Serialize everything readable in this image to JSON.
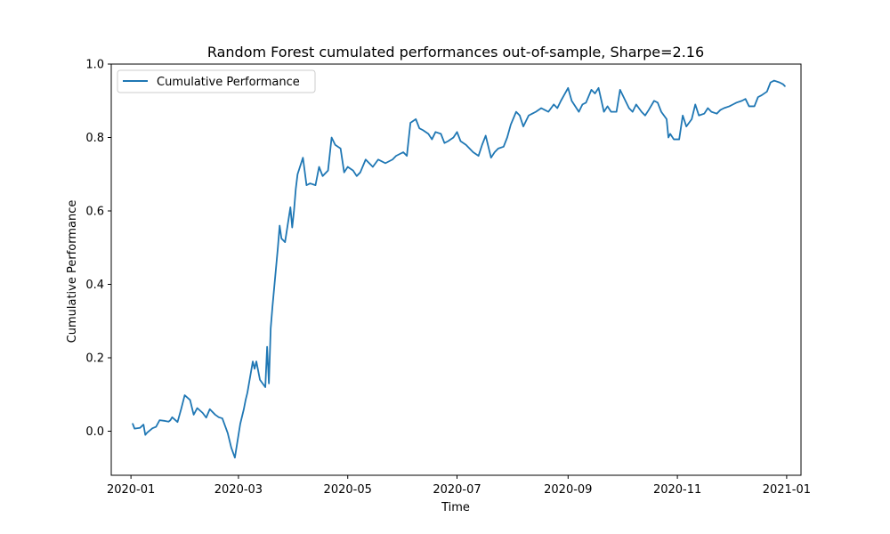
{
  "chart_data": {
    "type": "line",
    "title": "Random Forest cumulated performances out-of-sample, Sharpe=2.16",
    "xlabel": "Time",
    "ylabel": "Cumulative Performance",
    "x_type": "date",
    "xlim": [
      "2019-12-21",
      "2021-01-09"
    ],
    "ylim": [
      -0.12,
      1.0
    ],
    "x_ticks": [
      "2020-01-01",
      "2020-03-01",
      "2020-05-01",
      "2020-07-01",
      "2020-09-01",
      "2020-11-01",
      "2021-01-01"
    ],
    "x_tick_labels": [
      "2020-01",
      "2020-03",
      "2020-05",
      "2020-07",
      "2020-09",
      "2020-11",
      "2021-01"
    ],
    "y_ticks": [
      0.0,
      0.2,
      0.4,
      0.6,
      0.8,
      1.0
    ],
    "y_tick_labels": [
      "0.0",
      "0.2",
      "0.4",
      "0.6",
      "0.8",
      "1.0"
    ],
    "grid": false,
    "legend_position": "upper-left",
    "series": [
      {
        "name": "Cumulative Performance",
        "color": "#1f77b4",
        "x": [
          "2020-01-02",
          "2020-01-03",
          "2020-01-06",
          "2020-01-08",
          "2020-01-09",
          "2020-01-10",
          "2020-01-13",
          "2020-01-15",
          "2020-01-17",
          "2020-01-20",
          "2020-01-22",
          "2020-01-23",
          "2020-01-24",
          "2020-01-27",
          "2020-01-29",
          "2020-01-31",
          "2020-02-03",
          "2020-02-05",
          "2020-02-07",
          "2020-02-10",
          "2020-02-12",
          "2020-02-14",
          "2020-02-17",
          "2020-02-19",
          "2020-02-21",
          "2020-02-24",
          "2020-02-26",
          "2020-02-28",
          "2020-03-02",
          "2020-03-04",
          "2020-03-05",
          "2020-03-06",
          "2020-03-09",
          "2020-03-10",
          "2020-03-11",
          "2020-03-12",
          "2020-03-13",
          "2020-03-16",
          "2020-03-17",
          "2020-03-18",
          "2020-03-19",
          "2020-03-20",
          "2020-03-23",
          "2020-03-24",
          "2020-03-25",
          "2020-03-26",
          "2020-03-27",
          "2020-03-30",
          "2020-03-31",
          "2020-04-01",
          "2020-04-02",
          "2020-04-03",
          "2020-04-06",
          "2020-04-08",
          "2020-04-10",
          "2020-04-13",
          "2020-04-15",
          "2020-04-17",
          "2020-04-20",
          "2020-04-22",
          "2020-04-24",
          "2020-04-27",
          "2020-04-29",
          "2020-05-01",
          "2020-05-04",
          "2020-05-06",
          "2020-05-08",
          "2020-05-11",
          "2020-05-13",
          "2020-05-15",
          "2020-05-18",
          "2020-05-20",
          "2020-05-22",
          "2020-05-26",
          "2020-05-28",
          "2020-06-01",
          "2020-06-03",
          "2020-06-05",
          "2020-06-08",
          "2020-06-10",
          "2020-06-12",
          "2020-06-15",
          "2020-06-17",
          "2020-06-19",
          "2020-06-22",
          "2020-06-24",
          "2020-06-26",
          "2020-06-29",
          "2020-07-01",
          "2020-07-03",
          "2020-07-06",
          "2020-07-08",
          "2020-07-10",
          "2020-07-13",
          "2020-07-15",
          "2020-07-17",
          "2020-07-20",
          "2020-07-22",
          "2020-07-24",
          "2020-07-27",
          "2020-07-29",
          "2020-07-31",
          "2020-08-03",
          "2020-08-05",
          "2020-08-07",
          "2020-08-10",
          "2020-08-12",
          "2020-08-14",
          "2020-08-17",
          "2020-08-19",
          "2020-08-21",
          "2020-08-24",
          "2020-08-26",
          "2020-08-28",
          "2020-09-01",
          "2020-09-03",
          "2020-09-07",
          "2020-09-09",
          "2020-09-11",
          "2020-09-14",
          "2020-09-16",
          "2020-09-18",
          "2020-09-21",
          "2020-09-23",
          "2020-09-25",
          "2020-09-28",
          "2020-09-30",
          "2020-10-02",
          "2020-10-05",
          "2020-10-07",
          "2020-10-09",
          "2020-10-12",
          "2020-10-14",
          "2020-10-16",
          "2020-10-19",
          "2020-10-21",
          "2020-10-23",
          "2020-10-26",
          "2020-10-27",
          "2020-10-28",
          "2020-10-30",
          "2020-11-02",
          "2020-11-04",
          "2020-11-06",
          "2020-11-09",
          "2020-11-11",
          "2020-11-13",
          "2020-11-16",
          "2020-11-18",
          "2020-11-20",
          "2020-11-23",
          "2020-11-25",
          "2020-11-27",
          "2020-11-30",
          "2020-12-02",
          "2020-12-04",
          "2020-12-07",
          "2020-12-09",
          "2020-12-11",
          "2020-12-14",
          "2020-12-16",
          "2020-12-18",
          "2020-12-21",
          "2020-12-23",
          "2020-12-25",
          "2020-12-28",
          "2020-12-30",
          "2020-12-31"
        ],
        "y": [
          0.02,
          0.007,
          0.009,
          0.018,
          -0.01,
          -0.004,
          0.008,
          0.012,
          0.03,
          0.028,
          0.026,
          0.03,
          0.038,
          0.025,
          0.06,
          0.098,
          0.085,
          0.045,
          0.063,
          0.05,
          0.037,
          0.06,
          0.045,
          0.038,
          0.035,
          -0.005,
          -0.045,
          -0.072,
          0.02,
          0.06,
          0.085,
          0.105,
          0.19,
          0.17,
          0.19,
          0.165,
          0.14,
          0.12,
          0.23,
          0.13,
          0.28,
          0.34,
          0.5,
          0.56,
          0.525,
          0.52,
          0.515,
          0.61,
          0.555,
          0.6,
          0.66,
          0.7,
          0.745,
          0.67,
          0.675,
          0.67,
          0.72,
          0.695,
          0.71,
          0.8,
          0.78,
          0.77,
          0.705,
          0.72,
          0.71,
          0.695,
          0.705,
          0.74,
          0.73,
          0.72,
          0.74,
          0.735,
          0.73,
          0.74,
          0.75,
          0.76,
          0.75,
          0.84,
          0.85,
          0.825,
          0.82,
          0.81,
          0.795,
          0.815,
          0.81,
          0.785,
          0.79,
          0.8,
          0.815,
          0.79,
          0.78,
          0.77,
          0.76,
          0.75,
          0.78,
          0.805,
          0.745,
          0.76,
          0.77,
          0.775,
          0.8,
          0.835,
          0.87,
          0.86,
          0.83,
          0.86,
          0.865,
          0.87,
          0.88,
          0.875,
          0.87,
          0.89,
          0.88,
          0.9,
          0.935,
          0.9,
          0.87,
          0.89,
          0.895,
          0.93,
          0.92,
          0.935,
          0.87,
          0.885,
          0.87,
          0.87,
          0.93,
          0.91,
          0.88,
          0.87,
          0.89,
          0.87,
          0.86,
          0.875,
          0.9,
          0.895,
          0.87,
          0.85,
          0.8,
          0.81,
          0.795,
          0.795,
          0.86,
          0.83,
          0.85,
          0.89,
          0.86,
          0.865,
          0.88,
          0.87,
          0.865,
          0.875,
          0.88,
          0.885,
          0.89,
          0.895,
          0.9,
          0.905,
          0.885,
          0.885,
          0.91,
          0.915,
          0.925,
          0.95,
          0.955,
          0.95,
          0.945,
          0.94
        ]
      }
    ]
  }
}
